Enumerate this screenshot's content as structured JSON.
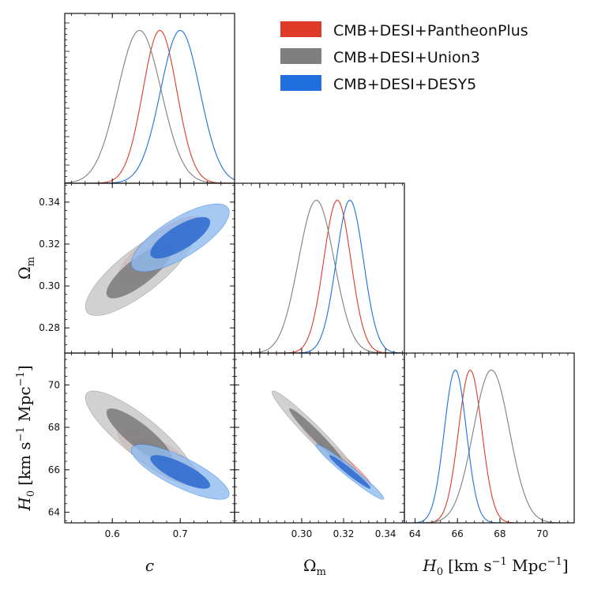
{
  "chart_data": {
    "type": "corner",
    "title": "",
    "parameters": [
      {
        "key": "c",
        "label": "c",
        "range": [
          0.53,
          0.78
        ],
        "ticks": [
          0.6,
          0.7
        ],
        "tick_labels": [
          "0.6",
          "0.7"
        ]
      },
      {
        "key": "om",
        "label": "Ωm",
        "label_main": "Ω",
        "label_sub": "m",
        "range": [
          0.268,
          0.349
        ],
        "ticks": [
          0.28,
          0.3,
          0.32,
          0.34
        ],
        "tick_labels": [
          "0.28",
          "0.30",
          "0.32",
          "0.34"
        ],
        "x_tick_labels": [
          "",
          "0.30",
          "0.32",
          "0.34"
        ]
      },
      {
        "key": "h0",
        "label": "H0 [km s−1 Mpc−1]",
        "label_main": "H",
        "label_sub": "0",
        "label_unit": "[km s",
        "label_exp": "−1",
        "label_unit2": " Mpc",
        "label_exp2": "−1",
        "label_end": "]",
        "range": [
          63.5,
          71.5
        ],
        "ticks": [
          64,
          66,
          68,
          70
        ],
        "tick_labels": [
          "64",
          "66",
          "68",
          "70"
        ]
      }
    ],
    "legend": {
      "placement": "top-right",
      "entries": [
        {
          "label": "CMB+DESI+PantheonPlus",
          "color": "#e03a28"
        },
        {
          "label": "CMB+DESI+Union3",
          "color": "#7f7f7f"
        },
        {
          "label": "CMB+DESI+DESY5",
          "color": "#1f6fe0"
        }
      ]
    },
    "series": [
      {
        "name": "CMB+DESI+PantheonPlus",
        "color": "#e03a28",
        "light": "#eba39b",
        "dark": "#d9412f",
        "mean": {
          "c": 0.67,
          "om": 0.317,
          "h0": 66.6
        },
        "sd": {
          "c": 0.025,
          "om": 0.0065,
          "h0": 0.55
        },
        "corr": {
          "c_om": 0.8,
          "c_h0": -0.82,
          "om_h0": -0.97
        }
      },
      {
        "name": "CMB+DESI+Union3",
        "color": "#7f7f7f",
        "light": "#c6c6c6",
        "dark": "#7a7a7a",
        "mean": {
          "c": 0.64,
          "om": 0.307,
          "h0": 67.6
        },
        "sd": {
          "c": 0.032,
          "om": 0.0085,
          "h0": 0.85
        },
        "corr": {
          "c_om": 0.8,
          "c_h0": -0.85,
          "om_h0": -0.97
        }
      },
      {
        "name": "CMB+DESI+DESY5",
        "color": "#1f6fe0",
        "light": "#8ebbf0",
        "dark": "#2d68cf",
        "mean": {
          "c": 0.7,
          "om": 0.323,
          "h0": 65.9
        },
        "sd": {
          "c": 0.029,
          "om": 0.0065,
          "h0": 0.52
        },
        "corr": {
          "c_om": 0.75,
          "c_h0": -0.8,
          "om_h0": -0.97
        }
      }
    ]
  }
}
